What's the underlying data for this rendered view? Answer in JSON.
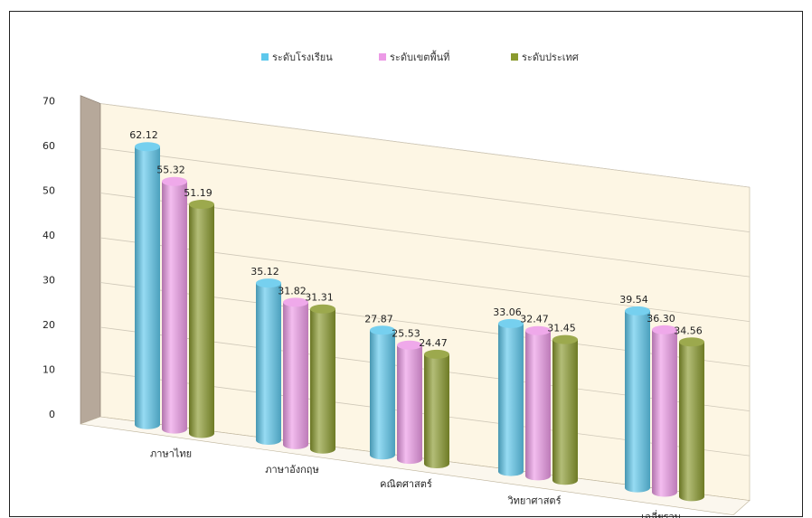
{
  "chart_data": {
    "type": "bar",
    "title": "",
    "xlabel": "",
    "ylabel": "",
    "ylim": [
      0,
      70
    ],
    "yticks": [
      "0",
      "10",
      "20",
      "30",
      "40",
      "50",
      "60",
      "70"
    ],
    "grid": true,
    "legend_position": "top-center",
    "categories": [
      "ภาษาไทย",
      "ภาษาอังกฤษ",
      "คณิตศาสตร์",
      "วิทยาศาสตร์",
      "เฉลี่ยรวม"
    ],
    "series": [
      {
        "name": "ระดับโรงเรียน",
        "color": "#5ec8ec",
        "values": [
          62.12,
          35.12,
          27.87,
          33.06,
          39.54
        ]
      },
      {
        "name": "ระดับเขตพื้นที่",
        "color": "#ec9ae6",
        "values": [
          55.32,
          31.82,
          25.53,
          32.47,
          36.3
        ]
      },
      {
        "name": "ระดับประเทศ",
        "color": "#8a9a2e",
        "values": [
          51.19,
          31.31,
          24.47,
          31.45,
          34.56
        ]
      }
    ],
    "value_labels": [
      [
        "62.12",
        "35.12",
        "27.87",
        "33.06",
        "39.54"
      ],
      [
        "55.32",
        "31.82",
        "25.53",
        "32.47",
        "36.30"
      ],
      [
        "51.19",
        "31.31",
        "24.47",
        "31.45",
        "34.56"
      ]
    ]
  }
}
